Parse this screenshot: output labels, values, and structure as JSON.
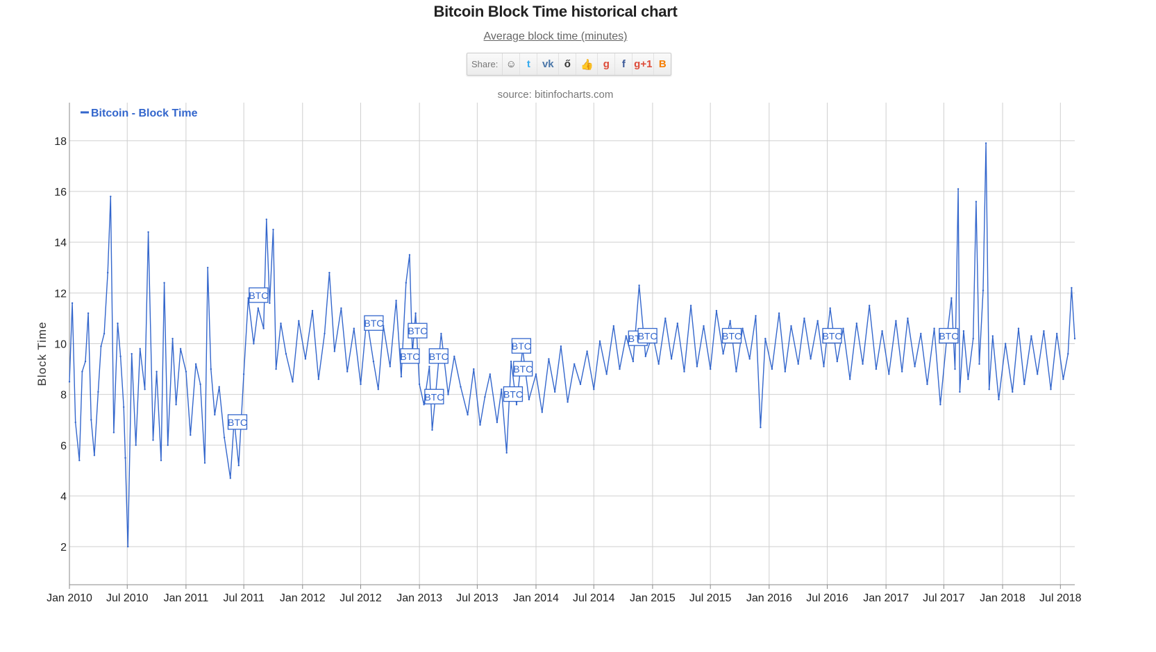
{
  "page": {
    "title": "Bitcoin Block Time historical chart",
    "subtitle": "Average block time (minutes)",
    "source": "source: bitinfocharts.com"
  },
  "share": {
    "label": "Share:",
    "icons": [
      {
        "name": "reddit-icon",
        "glyph": "☺",
        "color": "#555"
      },
      {
        "name": "twitter-icon",
        "glyph": "t",
        "color": "#33aaee"
      },
      {
        "name": "vk-icon",
        "glyph": "vk",
        "color": "#4a76a8"
      },
      {
        "name": "weibo-icon",
        "glyph": "ő",
        "color": "#333"
      },
      {
        "name": "like-icon",
        "glyph": "👍",
        "color": "#4a76a8"
      },
      {
        "name": "google-icon",
        "glyph": "g",
        "color": "#dd4b39"
      },
      {
        "name": "facebook-icon",
        "glyph": "f",
        "color": "#3b5998"
      },
      {
        "name": "google-plus-one-icon",
        "glyph": "g+1",
        "color": "#dd4b39"
      },
      {
        "name": "blogger-icon",
        "glyph": "B",
        "color": "#f57d00"
      }
    ]
  },
  "chart_data": {
    "type": "line",
    "title": "Bitcoin Block Time historical chart",
    "subtitle": "Average block time (minutes)",
    "ylabel": "Block Time",
    "xlabel": "",
    "ylim": [
      0.5,
      19.5
    ],
    "yticks": [
      2,
      4,
      6,
      8,
      10,
      12,
      14,
      16,
      18
    ],
    "grid": true,
    "legend_position": "top-left",
    "line_color": "#3366cc",
    "x_range": [
      "2010-01-01",
      "2018-08-15"
    ],
    "xticks": [
      {
        "date": "2010-01-01",
        "label": "Jan 2010"
      },
      {
        "date": "2010-07-01",
        "label": "Jul 2010"
      },
      {
        "date": "2011-01-01",
        "label": "Jan 2011"
      },
      {
        "date": "2011-07-01",
        "label": "Jul 2011"
      },
      {
        "date": "2012-01-01",
        "label": "Jan 2012"
      },
      {
        "date": "2012-07-01",
        "label": "Jul 2012"
      },
      {
        "date": "2013-01-01",
        "label": "Jan 2013"
      },
      {
        "date": "2013-07-01",
        "label": "Jul 2013"
      },
      {
        "date": "2014-01-01",
        "label": "Jan 2014"
      },
      {
        "date": "2014-07-01",
        "label": "Jul 2014"
      },
      {
        "date": "2015-01-01",
        "label": "Jan 2015"
      },
      {
        "date": "2015-07-01",
        "label": "Jul 2015"
      },
      {
        "date": "2016-01-01",
        "label": "Jan 2016"
      },
      {
        "date": "2016-07-01",
        "label": "Jul 2016"
      },
      {
        "date": "2017-01-01",
        "label": "Jan 2017"
      },
      {
        "date": "2017-07-01",
        "label": "Jul 2017"
      },
      {
        "date": "2018-01-01",
        "label": "Jan 2018"
      },
      {
        "date": "2018-07-01",
        "label": "Jul 2018"
      }
    ],
    "series": [
      {
        "name": "Bitcoin - Block Time",
        "points": [
          [
            "2010-01-01",
            8.5
          ],
          [
            "2010-01-10",
            11.6
          ],
          [
            "2010-01-20",
            6.9
          ],
          [
            "2010-02-01",
            5.4
          ],
          [
            "2010-02-10",
            8.9
          ],
          [
            "2010-02-20",
            9.3
          ],
          [
            "2010-03-01",
            11.2
          ],
          [
            "2010-03-10",
            7.0
          ],
          [
            "2010-03-20",
            5.6
          ],
          [
            "2010-04-01",
            8.1
          ],
          [
            "2010-04-10",
            9.9
          ],
          [
            "2010-04-20",
            10.4
          ],
          [
            "2010-05-01",
            12.8
          ],
          [
            "2010-05-10",
            15.8
          ],
          [
            "2010-05-20",
            6.5
          ],
          [
            "2010-06-01",
            10.8
          ],
          [
            "2010-06-10",
            9.5
          ],
          [
            "2010-06-20",
            7.5
          ],
          [
            "2010-06-25",
            5.5
          ],
          [
            "2010-07-03",
            2.0
          ],
          [
            "2010-07-15",
            9.6
          ],
          [
            "2010-07-28",
            6.0
          ],
          [
            "2010-08-10",
            9.8
          ],
          [
            "2010-08-25",
            8.2
          ],
          [
            "2010-09-05",
            14.4
          ],
          [
            "2010-09-20",
            6.2
          ],
          [
            "2010-10-01",
            8.9
          ],
          [
            "2010-10-15",
            5.4
          ],
          [
            "2010-10-25",
            12.4
          ],
          [
            "2010-11-05",
            6.0
          ],
          [
            "2010-11-20",
            10.2
          ],
          [
            "2010-12-01",
            7.6
          ],
          [
            "2010-12-15",
            9.8
          ],
          [
            "2011-01-01",
            8.9
          ],
          [
            "2011-01-15",
            6.4
          ],
          [
            "2011-02-01",
            9.2
          ],
          [
            "2011-02-15",
            8.4
          ],
          [
            "2011-03-01",
            5.3
          ],
          [
            "2011-03-10",
            13.0
          ],
          [
            "2011-03-20",
            9.0
          ],
          [
            "2011-04-01",
            7.2
          ],
          [
            "2011-04-15",
            8.3
          ],
          [
            "2011-05-01",
            6.3
          ],
          [
            "2011-05-20",
            4.7
          ],
          [
            "2011-06-01",
            7.0
          ],
          [
            "2011-06-15",
            5.2
          ],
          [
            "2011-07-01",
            8.8
          ],
          [
            "2011-07-15",
            11.8
          ],
          [
            "2011-08-01",
            10.0
          ],
          [
            "2011-08-15",
            11.4
          ],
          [
            "2011-09-01",
            10.6
          ],
          [
            "2011-09-10",
            14.9
          ],
          [
            "2011-09-20",
            11.6
          ],
          [
            "2011-10-01",
            14.5
          ],
          [
            "2011-10-10",
            9.0
          ],
          [
            "2011-10-25",
            10.8
          ],
          [
            "2011-11-10",
            9.6
          ],
          [
            "2011-12-01",
            8.5
          ],
          [
            "2011-12-20",
            10.9
          ],
          [
            "2012-01-10",
            9.4
          ],
          [
            "2012-02-01",
            11.3
          ],
          [
            "2012-02-20",
            8.6
          ],
          [
            "2012-03-10",
            10.4
          ],
          [
            "2012-03-25",
            12.8
          ],
          [
            "2012-04-10",
            9.7
          ],
          [
            "2012-05-01",
            11.4
          ],
          [
            "2012-05-20",
            8.9
          ],
          [
            "2012-06-10",
            10.6
          ],
          [
            "2012-07-01",
            8.4
          ],
          [
            "2012-07-20",
            11.0
          ],
          [
            "2012-08-10",
            9.3
          ],
          [
            "2012-08-25",
            8.2
          ],
          [
            "2012-09-10",
            10.7
          ],
          [
            "2012-10-01",
            9.1
          ],
          [
            "2012-10-20",
            11.7
          ],
          [
            "2012-11-05",
            8.7
          ],
          [
            "2012-11-20",
            12.4
          ],
          [
            "2012-12-01",
            13.5
          ],
          [
            "2012-12-10",
            9.6
          ],
          [
            "2012-12-20",
            11.2
          ],
          [
            "2013-01-01",
            8.4
          ],
          [
            "2013-01-15",
            7.6
          ],
          [
            "2013-02-01",
            9.1
          ],
          [
            "2013-02-10",
            6.6
          ],
          [
            "2013-02-20",
            7.9
          ],
          [
            "2013-03-10",
            10.4
          ],
          [
            "2013-04-01",
            8.0
          ],
          [
            "2013-04-20",
            9.5
          ],
          [
            "2013-05-10",
            8.3
          ],
          [
            "2013-06-01",
            7.2
          ],
          [
            "2013-06-20",
            9.0
          ],
          [
            "2013-07-10",
            6.8
          ],
          [
            "2013-07-25",
            7.9
          ],
          [
            "2013-08-10",
            8.8
          ],
          [
            "2013-09-01",
            6.9
          ],
          [
            "2013-09-15",
            8.2
          ],
          [
            "2013-10-01",
            5.7
          ],
          [
            "2013-10-15",
            9.3
          ],
          [
            "2013-11-01",
            7.6
          ],
          [
            "2013-11-20",
            9.8
          ],
          [
            "2013-12-10",
            7.8
          ],
          [
            "2014-01-01",
            8.8
          ],
          [
            "2014-01-20",
            7.3
          ],
          [
            "2014-02-10",
            9.4
          ],
          [
            "2014-03-01",
            8.1
          ],
          [
            "2014-03-20",
            9.9
          ],
          [
            "2014-04-10",
            7.7
          ],
          [
            "2014-05-01",
            9.2
          ],
          [
            "2014-05-20",
            8.4
          ],
          [
            "2014-06-10",
            9.7
          ],
          [
            "2014-07-01",
            8.2
          ],
          [
            "2014-07-20",
            10.1
          ],
          [
            "2014-08-10",
            8.8
          ],
          [
            "2014-09-01",
            10.7
          ],
          [
            "2014-09-20",
            9.0
          ],
          [
            "2014-10-10",
            10.3
          ],
          [
            "2014-11-01",
            9.3
          ],
          [
            "2014-11-20",
            12.3
          ],
          [
            "2014-12-10",
            9.5
          ],
          [
            "2015-01-01",
            10.4
          ],
          [
            "2015-01-20",
            9.2
          ],
          [
            "2015-02-10",
            11.0
          ],
          [
            "2015-03-01",
            9.4
          ],
          [
            "2015-03-20",
            10.8
          ],
          [
            "2015-04-10",
            8.9
          ],
          [
            "2015-05-01",
            11.5
          ],
          [
            "2015-05-20",
            9.1
          ],
          [
            "2015-06-10",
            10.7
          ],
          [
            "2015-07-01",
            9.0
          ],
          [
            "2015-07-20",
            11.3
          ],
          [
            "2015-08-10",
            9.6
          ],
          [
            "2015-09-01",
            10.9
          ],
          [
            "2015-09-20",
            8.9
          ],
          [
            "2015-10-10",
            10.6
          ],
          [
            "2015-11-01",
            9.4
          ],
          [
            "2015-11-20",
            11.1
          ],
          [
            "2015-12-05",
            6.7
          ],
          [
            "2015-12-20",
            10.2
          ],
          [
            "2016-01-10",
            9.0
          ],
          [
            "2016-02-01",
            11.2
          ],
          [
            "2016-02-20",
            8.9
          ],
          [
            "2016-03-10",
            10.7
          ],
          [
            "2016-04-01",
            9.2
          ],
          [
            "2016-04-20",
            11.0
          ],
          [
            "2016-05-10",
            9.4
          ],
          [
            "2016-06-01",
            10.9
          ],
          [
            "2016-06-20",
            9.1
          ],
          [
            "2016-07-10",
            11.4
          ],
          [
            "2016-08-01",
            9.3
          ],
          [
            "2016-08-20",
            10.6
          ],
          [
            "2016-09-10",
            8.6
          ],
          [
            "2016-10-01",
            10.8
          ],
          [
            "2016-10-20",
            9.2
          ],
          [
            "2016-11-10",
            11.5
          ],
          [
            "2016-12-01",
            9.0
          ],
          [
            "2016-12-20",
            10.5
          ],
          [
            "2017-01-10",
            8.8
          ],
          [
            "2017-02-01",
            10.9
          ],
          [
            "2017-02-20",
            8.9
          ],
          [
            "2017-03-10",
            11.0
          ],
          [
            "2017-04-01",
            9.1
          ],
          [
            "2017-04-20",
            10.4
          ],
          [
            "2017-05-10",
            8.4
          ],
          [
            "2017-06-01",
            10.6
          ],
          [
            "2017-06-20",
            7.6
          ],
          [
            "2017-07-10",
            10.2
          ],
          [
            "2017-07-25",
            11.8
          ],
          [
            "2017-08-05",
            9.0
          ],
          [
            "2017-08-15",
            16.1
          ],
          [
            "2017-08-20",
            8.1
          ],
          [
            "2017-09-01",
            10.5
          ],
          [
            "2017-09-15",
            8.6
          ],
          [
            "2017-10-01",
            10.2
          ],
          [
            "2017-10-10",
            15.6
          ],
          [
            "2017-10-20",
            9.2
          ],
          [
            "2017-11-01",
            12.1
          ],
          [
            "2017-11-10",
            17.9
          ],
          [
            "2017-11-20",
            8.2
          ],
          [
            "2017-12-01",
            10.3
          ],
          [
            "2017-12-20",
            7.8
          ],
          [
            "2018-01-10",
            10.0
          ],
          [
            "2018-02-01",
            8.1
          ],
          [
            "2018-02-20",
            10.6
          ],
          [
            "2018-03-10",
            8.4
          ],
          [
            "2018-04-01",
            10.3
          ],
          [
            "2018-04-20",
            8.8
          ],
          [
            "2018-05-10",
            10.5
          ],
          [
            "2018-06-01",
            8.2
          ],
          [
            "2018-06-20",
            10.4
          ],
          [
            "2018-07-10",
            8.6
          ],
          [
            "2018-07-25",
            9.6
          ],
          [
            "2018-08-05",
            12.2
          ],
          [
            "2018-08-15",
            10.2
          ]
        ]
      }
    ],
    "annotations": [
      {
        "date": "2011-06-10",
        "y": 6.9,
        "label": "BTC"
      },
      {
        "date": "2011-08-15",
        "y": 11.9,
        "label": "BTC"
      },
      {
        "date": "2012-08-10",
        "y": 10.8,
        "label": "BTC"
      },
      {
        "date": "2012-12-01",
        "y": 9.5,
        "label": "BTC"
      },
      {
        "date": "2012-12-25",
        "y": 10.5,
        "label": "BTC"
      },
      {
        "date": "2013-02-15",
        "y": 7.9,
        "label": "BTC"
      },
      {
        "date": "2013-03-01",
        "y": 9.5,
        "label": "BTC"
      },
      {
        "date": "2013-10-20",
        "y": 8.0,
        "label": "BTC"
      },
      {
        "date": "2013-11-15",
        "y": 9.9,
        "label": "BTC"
      },
      {
        "date": "2013-11-20",
        "y": 9.0,
        "label": "BTC"
      },
      {
        "date": "2014-11-15",
        "y": 10.2,
        "label": "BTC"
      },
      {
        "date": "2014-12-15",
        "y": 10.3,
        "label": "BTC"
      },
      {
        "date": "2015-09-05",
        "y": 10.3,
        "label": "BTC"
      },
      {
        "date": "2016-07-15",
        "y": 10.3,
        "label": "BTC"
      },
      {
        "date": "2017-07-15",
        "y": 10.3,
        "label": "BTC"
      }
    ]
  }
}
